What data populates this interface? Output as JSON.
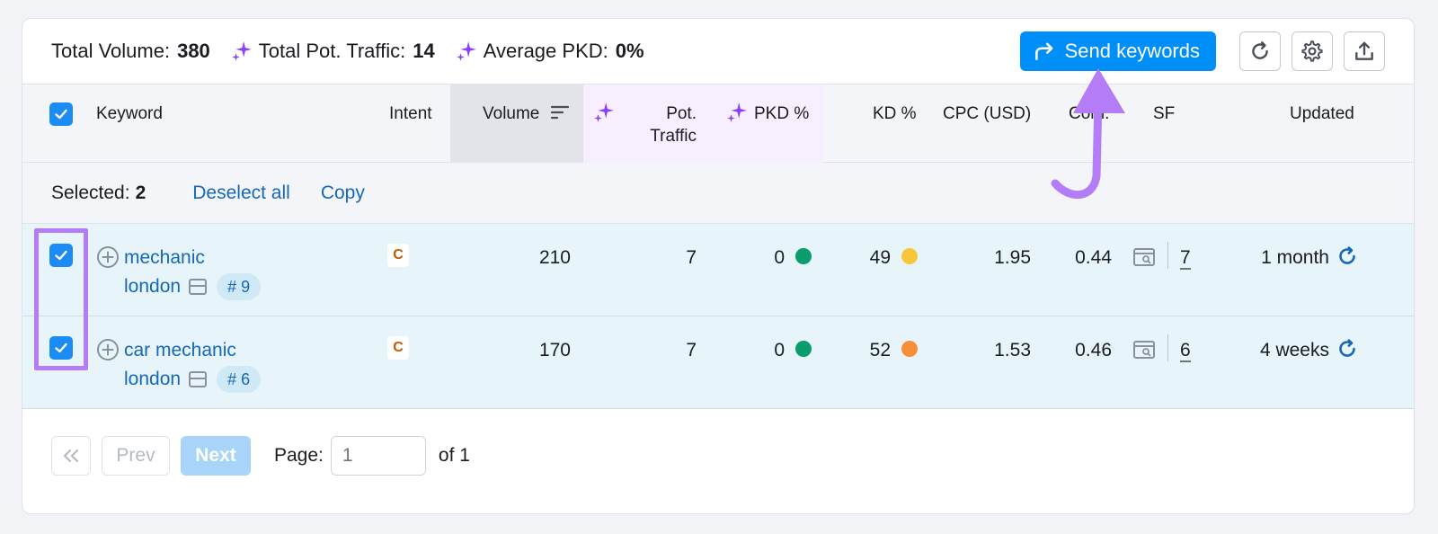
{
  "summary": {
    "total_volume_label": "Total Volume:",
    "total_volume_value": "380",
    "total_traffic_label": "Total Pot. Traffic:",
    "total_traffic_value": "14",
    "avg_pkd_label": "Average PKD:",
    "avg_pkd_value": "0%"
  },
  "toolbar": {
    "send_label": "Send keywords",
    "icons": [
      "reload-icon",
      "gear-icon",
      "export-icon"
    ]
  },
  "columns": {
    "keyword": "Keyword",
    "intent": "Intent",
    "volume": "Volume",
    "pot_traffic_1": "Pot.",
    "pot_traffic_2": "Traffic",
    "pkd": "PKD %",
    "kd": "KD %",
    "cpc": "CPC (USD)",
    "com": "Com.",
    "sf": "SF",
    "updated": "Updated"
  },
  "selection": {
    "label": "Selected:",
    "count": "2",
    "deselect_label": "Deselect all",
    "copy_label": "Copy"
  },
  "rows": [
    {
      "keyword_line1": "mechanic",
      "keyword_line2": "london",
      "position": "# 9",
      "intent": "C",
      "volume": "210",
      "pot_traffic": "7",
      "pkd": "0",
      "pkd_color": "#0a9d6e",
      "kd": "49",
      "kd_color": "#f6c73b",
      "cpc": "1.95",
      "com": "0.44",
      "sf": "7",
      "updated": "1 month"
    },
    {
      "keyword_line1": "car mechanic",
      "keyword_line2": "london",
      "position": "# 6",
      "intent": "C",
      "volume": "170",
      "pot_traffic": "7",
      "pkd": "0",
      "pkd_color": "#0a9d6e",
      "kd": "52",
      "kd_color": "#f78f3a",
      "cpc": "1.53",
      "com": "0.46",
      "sf": "6",
      "updated": "4 weeks"
    }
  ],
  "pagination": {
    "prev_label": "Prev",
    "next_label": "Next",
    "page_label": "Page:",
    "page_placeholder": "1",
    "of_label": "of 1"
  },
  "colors": {
    "accent": "#008ff8",
    "highlight": "#b47cf7",
    "link": "#1568b8",
    "row_bg": "#e7f5fb"
  }
}
